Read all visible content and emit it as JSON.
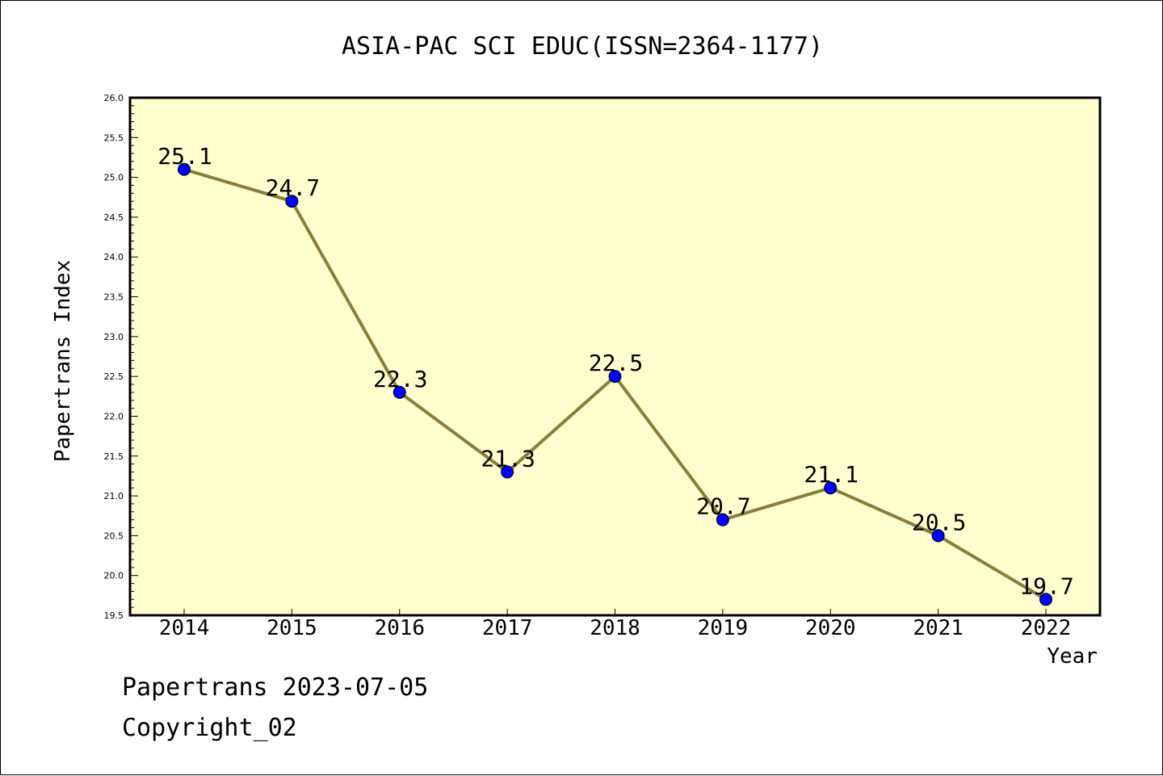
{
  "chart_data": {
    "type": "line",
    "title": "ASIA-PAC SCI EDUC(ISSN=2364-1177)",
    "xlabel": "Year",
    "ylabel": "Papertrans Index",
    "x": [
      "2014",
      "2015",
      "2016",
      "2017",
      "2018",
      "2019",
      "2020",
      "2021",
      "2022"
    ],
    "values": [
      25.1,
      24.7,
      22.3,
      21.3,
      22.5,
      20.7,
      21.1,
      20.5,
      19.7
    ],
    "data_labels": [
      "25.1",
      "24.7",
      "22.3",
      "21.3",
      "22.5",
      "20.7",
      "21.1",
      "20.5",
      "19.7"
    ],
    "ylim": [
      19.5,
      26.0
    ],
    "yticks": [
      "19.5",
      "20.0",
      "20.5",
      "21.0",
      "21.5",
      "22.0",
      "22.5",
      "23.0",
      "23.5",
      "24.0",
      "24.5",
      "25.0",
      "25.5",
      "26.0"
    ],
    "grid": false,
    "legend": "none",
    "colors": {
      "plot_background": "#ffffd0",
      "line": "#8b7d3a",
      "marker": "#0000ff"
    }
  },
  "footer": {
    "line1": "Papertrans 2023-07-05",
    "line2": "Copyright_02"
  }
}
